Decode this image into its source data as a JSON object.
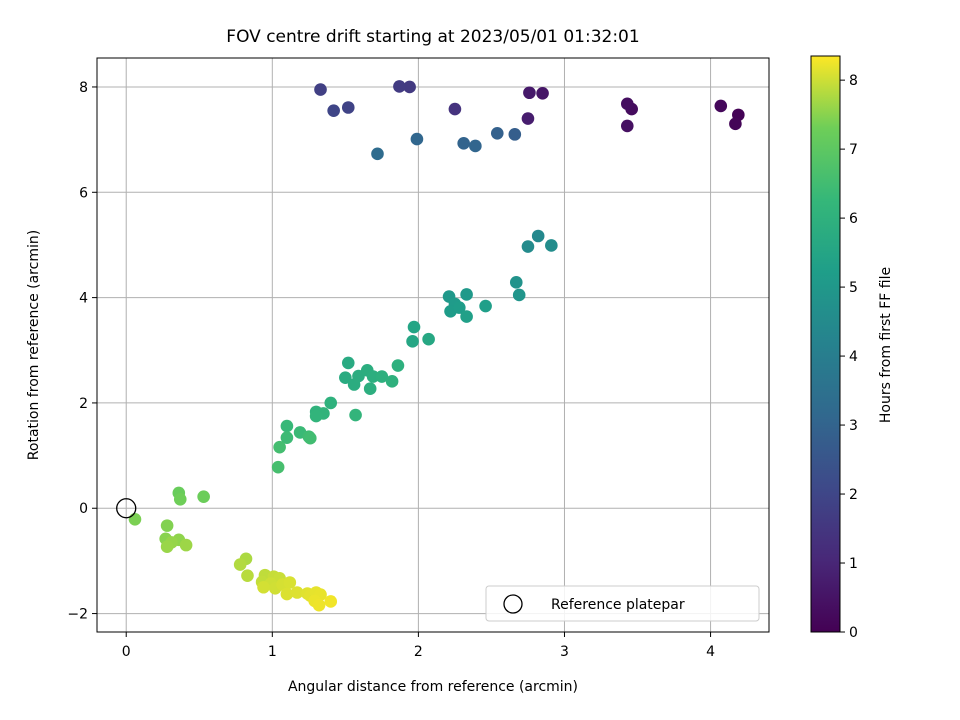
{
  "chart_data": {
    "type": "scatter",
    "title": "FOV centre drift starting at 2023/05/01 01:32:01",
    "xlabel": "Angular distance from reference (arcmin)",
    "ylabel": "Rotation from reference (arcmin)",
    "xlim": [
      -0.2,
      4.4
    ],
    "ylim": [
      -2.35,
      8.55
    ],
    "xticks": [
      0,
      1,
      2,
      3,
      4
    ],
    "yticks": [
      -2,
      0,
      2,
      4,
      6,
      8
    ],
    "xtick_labels": [
      "0",
      "1",
      "2",
      "3",
      "4"
    ],
    "ytick_labels": [
      "−2",
      "0",
      "2",
      "4",
      "6",
      "8"
    ],
    "grid": true,
    "colorbar": {
      "label": "Hours from first FF file",
      "range": [
        0,
        8.35
      ],
      "ticks": [
        0,
        1,
        2,
        3,
        4,
        5,
        6,
        7,
        8
      ],
      "tick_labels": [
        "0",
        "1",
        "2",
        "3",
        "4",
        "5",
        "6",
        "7",
        "8"
      ],
      "colormap": "viridis"
    },
    "legend": {
      "position": "lower-right",
      "entries": [
        {
          "label": "Reference platepar",
          "marker": "open-circle"
        }
      ]
    },
    "reference_point": {
      "x": 0,
      "y": 0
    },
    "points": [
      {
        "x": 4.19,
        "y": 7.47,
        "c": 0.05
      },
      {
        "x": 4.17,
        "y": 7.3,
        "c": 0.1
      },
      {
        "x": 4.07,
        "y": 7.64,
        "c": 0.2
      },
      {
        "x": 3.46,
        "y": 7.58,
        "c": 0.3
      },
      {
        "x": 3.43,
        "y": 7.68,
        "c": 0.35
      },
      {
        "x": 3.43,
        "y": 7.26,
        "c": 0.4
      },
      {
        "x": 2.85,
        "y": 7.88,
        "c": 0.55
      },
      {
        "x": 2.76,
        "y": 7.89,
        "c": 0.65
      },
      {
        "x": 2.75,
        "y": 7.4,
        "c": 0.75
      },
      {
        "x": 2.25,
        "y": 7.58,
        "c": 1.4
      },
      {
        "x": 1.94,
        "y": 8.0,
        "c": 1.6
      },
      {
        "x": 1.87,
        "y": 8.01,
        "c": 1.65
      },
      {
        "x": 1.33,
        "y": 7.95,
        "c": 1.8
      },
      {
        "x": 1.52,
        "y": 7.61,
        "c": 1.9
      },
      {
        "x": 1.42,
        "y": 7.55,
        "c": 1.95
      },
      {
        "x": 2.66,
        "y": 7.1,
        "c": 2.8
      },
      {
        "x": 2.54,
        "y": 7.12,
        "c": 2.9
      },
      {
        "x": 2.31,
        "y": 6.93,
        "c": 3.0
      },
      {
        "x": 2.39,
        "y": 6.88,
        "c": 3.05
      },
      {
        "x": 1.99,
        "y": 7.01,
        "c": 3.1
      },
      {
        "x": 1.72,
        "y": 6.73,
        "c": 3.3
      },
      {
        "x": 2.82,
        "y": 5.17,
        "c": 4.4
      },
      {
        "x": 2.75,
        "y": 4.97,
        "c": 4.5
      },
      {
        "x": 2.91,
        "y": 4.99,
        "c": 4.6
      },
      {
        "x": 2.67,
        "y": 4.29,
        "c": 4.8
      },
      {
        "x": 2.69,
        "y": 4.05,
        "c": 4.9
      },
      {
        "x": 2.21,
        "y": 4.02,
        "c": 5.0
      },
      {
        "x": 2.33,
        "y": 4.06,
        "c": 5.05
      },
      {
        "x": 2.25,
        "y": 3.88,
        "c": 5.1
      },
      {
        "x": 2.22,
        "y": 3.74,
        "c": 5.15
      },
      {
        "x": 2.28,
        "y": 3.81,
        "c": 5.2
      },
      {
        "x": 2.46,
        "y": 3.84,
        "c": 5.25
      },
      {
        "x": 2.33,
        "y": 3.64,
        "c": 5.3
      },
      {
        "x": 1.97,
        "y": 3.44,
        "c": 5.5
      },
      {
        "x": 1.96,
        "y": 3.17,
        "c": 5.55
      },
      {
        "x": 2.07,
        "y": 3.21,
        "c": 5.6
      },
      {
        "x": 1.52,
        "y": 2.76,
        "c": 5.7
      },
      {
        "x": 1.5,
        "y": 2.48,
        "c": 5.75
      },
      {
        "x": 1.56,
        "y": 2.35,
        "c": 5.8
      },
      {
        "x": 1.59,
        "y": 2.51,
        "c": 5.82
      },
      {
        "x": 1.65,
        "y": 2.62,
        "c": 5.85
      },
      {
        "x": 1.67,
        "y": 2.27,
        "c": 5.88
      },
      {
        "x": 1.69,
        "y": 2.5,
        "c": 5.9
      },
      {
        "x": 1.75,
        "y": 2.5,
        "c": 5.92
      },
      {
        "x": 1.86,
        "y": 2.71,
        "c": 5.95
      },
      {
        "x": 1.82,
        "y": 2.41,
        "c": 5.97
      },
      {
        "x": 1.4,
        "y": 2.0,
        "c": 6.0
      },
      {
        "x": 1.3,
        "y": 1.83,
        "c": 6.05
      },
      {
        "x": 1.35,
        "y": 1.8,
        "c": 6.1
      },
      {
        "x": 1.3,
        "y": 1.75,
        "c": 6.12
      },
      {
        "x": 1.57,
        "y": 1.77,
        "c": 6.15
      },
      {
        "x": 1.1,
        "y": 1.56,
        "c": 6.3
      },
      {
        "x": 1.19,
        "y": 1.44,
        "c": 6.35
      },
      {
        "x": 1.1,
        "y": 1.34,
        "c": 6.4
      },
      {
        "x": 1.25,
        "y": 1.36,
        "c": 6.45
      },
      {
        "x": 1.26,
        "y": 1.33,
        "c": 6.5
      },
      {
        "x": 1.05,
        "y": 1.16,
        "c": 6.55
      },
      {
        "x": 1.04,
        "y": 0.78,
        "c": 6.6
      },
      {
        "x": 0.36,
        "y": 0.29,
        "c": 7.2
      },
      {
        "x": 0.53,
        "y": 0.22,
        "c": 7.25
      },
      {
        "x": 0.37,
        "y": 0.17,
        "c": 7.3
      },
      {
        "x": 0.06,
        "y": -0.21,
        "c": 7.4
      },
      {
        "x": 0.28,
        "y": -0.33,
        "c": 7.45
      },
      {
        "x": 0.27,
        "y": -0.58,
        "c": 7.5
      },
      {
        "x": 0.36,
        "y": -0.6,
        "c": 7.55
      },
      {
        "x": 0.31,
        "y": -0.65,
        "c": 7.6
      },
      {
        "x": 0.28,
        "y": -0.73,
        "c": 7.62
      },
      {
        "x": 0.41,
        "y": -0.7,
        "c": 7.65
      },
      {
        "x": 0.82,
        "y": -0.96,
        "c": 7.75
      },
      {
        "x": 0.78,
        "y": -1.07,
        "c": 7.8
      },
      {
        "x": 0.83,
        "y": -1.28,
        "c": 7.85
      },
      {
        "x": 0.95,
        "y": -1.27,
        "c": 7.9
      },
      {
        "x": 0.93,
        "y": -1.4,
        "c": 7.92
      },
      {
        "x": 1.01,
        "y": -1.3,
        "c": 7.95
      },
      {
        "x": 1.05,
        "y": -1.33,
        "c": 7.97
      },
      {
        "x": 0.99,
        "y": -1.43,
        "c": 8.0
      },
      {
        "x": 1.02,
        "y": -1.52,
        "c": 8.02
      },
      {
        "x": 0.94,
        "y": -1.5,
        "c": 8.04
      },
      {
        "x": 1.07,
        "y": -1.45,
        "c": 8.06
      },
      {
        "x": 1.12,
        "y": -1.41,
        "c": 8.08
      },
      {
        "x": 1.1,
        "y": -1.63,
        "c": 8.1
      },
      {
        "x": 1.17,
        "y": -1.6,
        "c": 8.12
      },
      {
        "x": 1.24,
        "y": -1.62,
        "c": 8.14
      },
      {
        "x": 1.26,
        "y": -1.66,
        "c": 8.16
      },
      {
        "x": 1.3,
        "y": -1.6,
        "c": 8.18
      },
      {
        "x": 1.33,
        "y": -1.64,
        "c": 8.2
      },
      {
        "x": 1.29,
        "y": -1.76,
        "c": 8.22
      },
      {
        "x": 1.32,
        "y": -1.84,
        "c": 8.24
      },
      {
        "x": 1.4,
        "y": -1.77,
        "c": 8.26
      }
    ]
  }
}
